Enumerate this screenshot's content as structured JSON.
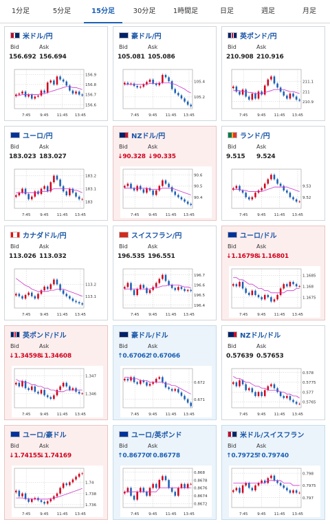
{
  "tabs": [
    {
      "label": "1分足",
      "active": false
    },
    {
      "label": "5分足",
      "active": false
    },
    {
      "label": "15分足",
      "active": true
    },
    {
      "label": "30分足",
      "active": false
    },
    {
      "label": "1時間足",
      "active": false
    },
    {
      "label": "日足",
      "active": false
    },
    {
      "label": "週足",
      "active": false
    },
    {
      "label": "月足",
      "active": false
    }
  ],
  "labels": {
    "bid": "Bid",
    "ask": "Ask"
  },
  "colors": {
    "up_candle": "#d0021b",
    "down_candle": "#1a5fb4",
    "ma_line": "#cc33cc",
    "down_bg": "#fdeeee",
    "up_bg": "#ebf4fb"
  },
  "cards": [
    {
      "name": "米ドル/円",
      "flag": "us",
      "trend": "none",
      "bid": "156.692",
      "ask": "156.694",
      "chart_data": {
        "type": "candlestick",
        "x": [
          "7:45",
          "9:45",
          "11:45",
          "13:45"
        ],
        "yticks": [
          "156.9",
          "156.8",
          "156.7",
          "156.6"
        ],
        "ylim": [
          156.56,
          156.95
        ],
        "closes": [
          156.7,
          156.71,
          156.73,
          156.68,
          156.7,
          156.66,
          156.68,
          156.69,
          156.74,
          156.72,
          156.82,
          156.84,
          156.8,
          156.88,
          156.85,
          156.83,
          156.79,
          156.74,
          156.71,
          156.73,
          156.7,
          156.69
        ],
        "ma": [
          156.69,
          156.69,
          156.7,
          156.7,
          156.7,
          156.7,
          156.7,
          156.7,
          156.71,
          156.71,
          156.72,
          156.73,
          156.74,
          156.75,
          156.76,
          156.77,
          156.78,
          156.78,
          156.77,
          156.77,
          156.76,
          156.75
        ]
      }
    },
    {
      "name": "豪ドル/円",
      "flag": "au",
      "trend": "none",
      "bid": "105.081",
      "ask": "105.086",
      "chart_data": {
        "type": "candlestick",
        "x": [
          "7:45",
          "9:45",
          "11:45",
          "13:45"
        ],
        "yticks": [
          "105.4",
          "105.2"
        ],
        "ylim": [
          105.05,
          105.55
        ],
        "closes": [
          105.38,
          105.36,
          105.37,
          105.34,
          105.32,
          105.33,
          105.36,
          105.39,
          105.42,
          105.37,
          105.35,
          105.38,
          105.48,
          105.45,
          105.4,
          105.3,
          105.25,
          105.22,
          105.18,
          105.14,
          105.1,
          105.08
        ],
        "ma": [
          105.36,
          105.36,
          105.36,
          105.36,
          105.36,
          105.36,
          105.36,
          105.36,
          105.37,
          105.37,
          105.37,
          105.37,
          105.38,
          105.38,
          105.38,
          105.37,
          105.36,
          105.34,
          105.32,
          105.3,
          105.27,
          105.25
        ]
      }
    },
    {
      "name": "英ポンド/円",
      "flag": "uk",
      "trend": "none",
      "bid": "210.908",
      "ask": "210.916",
      "chart_data": {
        "type": "candlestick",
        "x": [
          "7:45",
          "9:45",
          "11:45",
          "13:45"
        ],
        "yticks": [
          "211.1",
          "211",
          "210.9"
        ],
        "ylim": [
          210.83,
          211.22
        ],
        "closes": [
          211.05,
          211.0,
          210.97,
          211.02,
          210.95,
          210.92,
          210.98,
          210.93,
          211.0,
          210.97,
          211.06,
          211.12,
          211.15,
          211.08,
          211.04,
          211.0,
          210.96,
          210.93,
          210.98,
          210.95,
          210.92,
          210.91
        ],
        "ma": [
          211.01,
          211.01,
          211.01,
          211.0,
          211.0,
          210.99,
          210.99,
          210.98,
          210.98,
          210.98,
          210.99,
          211.0,
          211.01,
          211.02,
          211.02,
          211.02,
          211.02,
          211.01,
          211.0,
          211.0,
          210.99,
          210.98
        ]
      }
    },
    {
      "name": "ユーロ/円",
      "flag": "eu",
      "trend": "none",
      "bid": "183.023",
      "ask": "183.027",
      "chart_data": {
        "type": "candlestick",
        "x": [
          "7:45",
          "9:45",
          "11:45",
          "13:45"
        ],
        "yticks": [
          "183.2",
          "183.1",
          "183"
        ],
        "ylim": [
          182.95,
          183.25
        ],
        "closes": [
          183.05,
          183.07,
          183.1,
          183.06,
          183.02,
          183.04,
          183.08,
          183.06,
          183.1,
          183.12,
          183.08,
          183.15,
          183.2,
          183.17,
          183.12,
          183.08,
          183.05,
          183.1,
          183.07,
          183.04,
          183.02,
          183.02
        ],
        "ma": [
          183.07,
          183.07,
          183.07,
          183.07,
          183.07,
          183.07,
          183.07,
          183.07,
          183.08,
          183.08,
          183.08,
          183.09,
          183.1,
          183.1,
          183.1,
          183.1,
          183.1,
          183.1,
          183.09,
          183.09,
          183.08,
          183.07
        ]
      }
    },
    {
      "name": "NZドル/円",
      "flag": "nz",
      "trend": "down",
      "bid": "↓90.328",
      "ask": "↓90.335",
      "chart_data": {
        "type": "candlestick",
        "x": [
          "7:45",
          "9:45",
          "11:45",
          "13:45"
        ],
        "yticks": [
          "90.6",
          "90.5",
          "90.4"
        ],
        "ylim": [
          90.3,
          90.65
        ],
        "closes": [
          90.5,
          90.52,
          90.48,
          90.46,
          90.5,
          90.47,
          90.44,
          90.48,
          90.46,
          90.42,
          90.46,
          90.5,
          90.55,
          90.52,
          90.49,
          90.45,
          90.42,
          90.4,
          90.38,
          90.36,
          90.34,
          90.33
        ],
        "ma": [
          90.48,
          90.48,
          90.48,
          90.48,
          90.48,
          90.48,
          90.48,
          90.48,
          90.47,
          90.47,
          90.47,
          90.47,
          90.48,
          90.48,
          90.48,
          90.48,
          90.47,
          90.46,
          90.45,
          90.44,
          90.43,
          90.42
        ]
      }
    },
    {
      "name": "ランド/円",
      "flag": "za",
      "trend": "none",
      "bid": "9.515",
      "ask": "9.524",
      "chart_data": {
        "type": "candlestick",
        "x": [
          "7:45",
          "9:45",
          "11:45",
          "13:45"
        ],
        "yticks": [
          "9.53",
          "9.52"
        ],
        "ylim": [
          9.51,
          9.545
        ],
        "closes": [
          9.528,
          9.53,
          9.526,
          9.524,
          9.52,
          9.518,
          9.52,
          9.524,
          9.526,
          9.528,
          9.532,
          9.536,
          9.54,
          9.536,
          9.532,
          9.53,
          9.526,
          9.524,
          9.52,
          9.518,
          9.516,
          9.516
        ],
        "ma": [
          9.527,
          9.527,
          9.527,
          9.526,
          9.526,
          9.525,
          9.525,
          9.525,
          9.525,
          9.525,
          9.526,
          9.527,
          9.528,
          9.529,
          9.529,
          9.529,
          9.529,
          9.529,
          9.528,
          9.527,
          9.526,
          9.525
        ]
      }
    },
    {
      "name": "カナダドル/円",
      "flag": "ca",
      "trend": "none",
      "bid": "113.026",
      "ask": "113.032",
      "chart_data": {
        "type": "candlestick",
        "x": [
          "7:45",
          "9:45",
          "11:45",
          "13:45"
        ],
        "yticks": [
          "113.2",
          "113.1"
        ],
        "ylim": [
          113.0,
          113.33
        ],
        "closes": [
          113.12,
          113.1,
          113.08,
          113.11,
          113.13,
          113.1,
          113.08,
          113.12,
          113.15,
          113.18,
          113.16,
          113.2,
          113.24,
          113.2,
          113.15,
          113.12,
          113.1,
          113.08,
          113.06,
          113.05,
          113.04,
          113.03
        ],
        "ma": [
          113.25,
          113.23,
          113.21,
          113.19,
          113.18,
          113.16,
          113.15,
          113.14,
          113.14,
          113.14,
          113.14,
          113.15,
          113.15,
          113.16,
          113.16,
          113.16,
          113.15,
          113.14,
          113.13,
          113.12,
          113.11,
          113.1
        ]
      }
    },
    {
      "name": "スイスフラン/円",
      "flag": "ch",
      "trend": "none",
      "bid": "196.535",
      "ask": "196.551",
      "chart_data": {
        "type": "candlestick",
        "x": [
          "7:45",
          "9:45",
          "11:45",
          "13:45"
        ],
        "yticks": [
          "196.7",
          "196.6",
          "196.5",
          "196.4"
        ],
        "ylim": [
          196.37,
          196.76
        ],
        "closes": [
          196.58,
          196.62,
          196.55,
          196.5,
          196.56,
          196.6,
          196.57,
          196.52,
          196.55,
          196.58,
          196.62,
          196.66,
          196.7,
          196.64,
          196.6,
          196.57,
          196.55,
          196.58,
          196.56,
          196.54,
          196.55,
          196.54
        ],
        "ma": [
          196.56,
          196.56,
          196.56,
          196.56,
          196.56,
          196.56,
          196.56,
          196.56,
          196.56,
          196.57,
          196.57,
          196.58,
          196.59,
          196.59,
          196.6,
          196.6,
          196.6,
          196.6,
          196.59,
          196.58,
          196.58,
          196.57
        ]
      }
    },
    {
      "name": "ユーロ/ドル",
      "flag": "eu",
      "trend": "down",
      "bid": "↓1.16798",
      "ask": "↓1.16801",
      "chart_data": {
        "type": "candlestick",
        "x": [
          "7:45",
          "9:45",
          "11:45",
          "13:45"
        ],
        "yticks": [
          "1.1685",
          "1.168",
          "1.1675"
        ],
        "ylim": [
          1.167,
          1.1688
        ],
        "closes": [
          1.1681,
          1.168,
          1.1682,
          1.1679,
          1.1677,
          1.1676,
          1.1678,
          1.1676,
          1.1675,
          1.1674,
          1.1676,
          1.1675,
          1.1673,
          1.1674,
          1.1676,
          1.1679,
          1.1681,
          1.168,
          1.1682,
          1.1681,
          1.168,
          1.168
        ],
        "ma": [
          1.1684,
          1.1684,
          1.1683,
          1.1683,
          1.1682,
          1.1681,
          1.1681,
          1.168,
          1.1679,
          1.1679,
          1.1678,
          1.1678,
          1.1677,
          1.1677,
          1.1677,
          1.1677,
          1.1677,
          1.1678,
          1.1678,
          1.1678,
          1.1679,
          1.1679
        ]
      }
    },
    {
      "name": "英ポンド/ドル",
      "flag": "uk",
      "trend": "down",
      "bid": "↓1.34598",
      "ask": "↓1.34608",
      "chart_data": {
        "type": "candlestick",
        "x": [
          "7:45",
          "9:45",
          "11:45",
          "13:45"
        ],
        "yticks": [
          "1.347",
          "1.346"
        ],
        "ylim": [
          1.3452,
          1.3474
        ],
        "closes": [
          1.3466,
          1.3464,
          1.3467,
          1.3463,
          1.3462,
          1.3464,
          1.3461,
          1.346,
          1.3462,
          1.3459,
          1.3458,
          1.3457,
          1.3459,
          1.3462,
          1.3464,
          1.3466,
          1.3464,
          1.3462,
          1.3463,
          1.3461,
          1.346,
          1.346
        ],
        "ma": [
          1.3468,
          1.3467,
          1.3467,
          1.3466,
          1.3466,
          1.3465,
          1.3465,
          1.3464,
          1.3464,
          1.3463,
          1.3463,
          1.3462,
          1.3462,
          1.3461,
          1.3461,
          1.3461,
          1.3462,
          1.3462,
          1.3462,
          1.3462,
          1.3462,
          1.3462
        ]
      }
    },
    {
      "name": "豪ドル/ドル",
      "flag": "au",
      "trend": "up",
      "bid": "↑0.67062",
      "ask": "↑0.67066",
      "chart_data": {
        "type": "candlestick",
        "x": [
          "7:45",
          "9:45",
          "11:45",
          "13:45"
        ],
        "yticks": [
          "0.672",
          "0.671"
        ],
        "ylim": [
          0.6705,
          0.6728
        ],
        "closes": [
          0.6722,
          0.6721,
          0.6723,
          0.672,
          0.6719,
          0.6721,
          0.672,
          0.6718,
          0.6719,
          0.672,
          0.6722,
          0.6723,
          0.672,
          0.6717,
          0.6716,
          0.6715,
          0.6716,
          0.6714,
          0.6712,
          0.671,
          0.6708,
          0.6706
        ],
        "ma": [
          0.6723,
          0.6723,
          0.6722,
          0.6722,
          0.6722,
          0.6721,
          0.6721,
          0.6721,
          0.672,
          0.672,
          0.672,
          0.672,
          0.672,
          0.6719,
          0.6719,
          0.6718,
          0.6718,
          0.6717,
          0.6716,
          0.6715,
          0.6714,
          0.6713
        ]
      }
    },
    {
      "name": "NZドル/ドル",
      "flag": "nz",
      "trend": "none",
      "bid": "0.57639",
      "ask": "0.57653",
      "chart_data": {
        "type": "candlestick",
        "x": [
          "7:45",
          "9:45",
          "11:45",
          "13:45"
        ],
        "yticks": [
          "0.578",
          "0.5775",
          "0.577",
          "0.5765"
        ],
        "ylim": [
          0.5762,
          0.5782
        ],
        "closes": [
          0.5775,
          0.5773,
          0.5776,
          0.5774,
          0.5771,
          0.5772,
          0.577,
          0.5768,
          0.577,
          0.5768,
          0.5771,
          0.5773,
          0.5774,
          0.5772,
          0.577,
          0.5768,
          0.5767,
          0.5768,
          0.5766,
          0.5765,
          0.5764,
          0.5764
        ],
        "ma": [
          0.5778,
          0.5777,
          0.5777,
          0.5776,
          0.5775,
          0.5775,
          0.5774,
          0.5773,
          0.5773,
          0.5772,
          0.5772,
          0.5771,
          0.5771,
          0.5771,
          0.5771,
          0.577,
          0.577,
          0.5769,
          0.5769,
          0.5768,
          0.5768,
          0.5767
        ]
      }
    },
    {
      "name": "ユーロ/豪ドル",
      "flag": "eu",
      "trend": "down",
      "bid": "↓1.74155",
      "ask": "↓1.74169",
      "chart_data": {
        "type": "candlestick",
        "x": [
          "7:45",
          "9:45",
          "11:45",
          "13:45"
        ],
        "yticks": [
          "1.74",
          "1.738",
          "1.736"
        ],
        "ylim": [
          1.7355,
          1.7425
        ],
        "closes": [
          1.7385,
          1.7375,
          1.738,
          1.737,
          1.7365,
          1.737,
          1.7372,
          1.7368,
          1.7365,
          1.7362,
          1.7366,
          1.737,
          1.7375,
          1.738,
          1.739,
          1.7398,
          1.7395,
          1.74,
          1.7405,
          1.741,
          1.7415,
          1.7416
        ],
        "ma": [
          1.7372,
          1.7372,
          1.7372,
          1.7371,
          1.7371,
          1.737,
          1.737,
          1.737,
          1.737,
          1.737,
          1.737,
          1.7371,
          1.7372,
          1.7373,
          1.7375,
          1.7377,
          1.7379,
          1.7381,
          1.7383,
          1.7385,
          1.7387,
          1.7389
        ]
      }
    },
    {
      "name": "ユーロ/英ポンド",
      "flag": "eu",
      "trend": "up",
      "bid": "↑0.86770",
      "ask": "↑0.86778",
      "chart_data": {
        "type": "candlestick",
        "x": [
          "7:45",
          "9:45",
          "11:45",
          "13:45"
        ],
        "yticks": [
          "0.868",
          "0.8678",
          "0.8676",
          "0.8674",
          "0.8672"
        ],
        "ylim": [
          0.8671,
          0.8681
        ],
        "closes": [
          0.8675,
          0.8676,
          0.8674,
          0.8673,
          0.8675,
          0.8676,
          0.8675,
          0.8674,
          0.8676,
          0.8677,
          0.8676,
          0.8678,
          0.8679,
          0.8678,
          0.8676,
          0.8675,
          0.8674,
          0.8676,
          0.8677,
          0.8676,
          0.8677,
          0.8677
        ],
        "ma": [
          0.8675,
          0.8675,
          0.8675,
          0.8675,
          0.8675,
          0.8675,
          0.8675,
          0.8675,
          0.8675,
          0.8675,
          0.8675,
          0.8676,
          0.8676,
          0.8676,
          0.8676,
          0.8676,
          0.8676,
          0.8676,
          0.8676,
          0.8676,
          0.8676,
          0.8676
        ]
      }
    },
    {
      "name": "米ドル/スイスフラン",
      "flag": "us",
      "trend": "up",
      "bid": "↑0.79725",
      "ask": "↑0.79740",
      "chart_data": {
        "type": "candlestick",
        "x": [
          "7:45",
          "9:45",
          "11:45",
          "13:45"
        ],
        "yticks": [
          "0.798",
          "0.7975",
          "0.797"
        ],
        "ylim": [
          0.7966,
          0.7982
        ],
        "closes": [
          0.7973,
          0.7974,
          0.7972,
          0.7975,
          0.7976,
          0.7974,
          0.7973,
          0.7975,
          0.7976,
          0.7977,
          0.7976,
          0.7978,
          0.7979,
          0.7977,
          0.7976,
          0.7975,
          0.7974,
          0.7973,
          0.7972,
          0.7973,
          0.7972,
          0.7972
        ],
        "ma": [
          0.7976,
          0.7976,
          0.7976,
          0.7976,
          0.7976,
          0.7976,
          0.7976,
          0.7976,
          0.7976,
          0.7976,
          0.7976,
          0.7977,
          0.7977,
          0.7977,
          0.7977,
          0.7977,
          0.7976,
          0.7976,
          0.7976,
          0.7975,
          0.7975,
          0.7975
        ]
      }
    }
  ]
}
